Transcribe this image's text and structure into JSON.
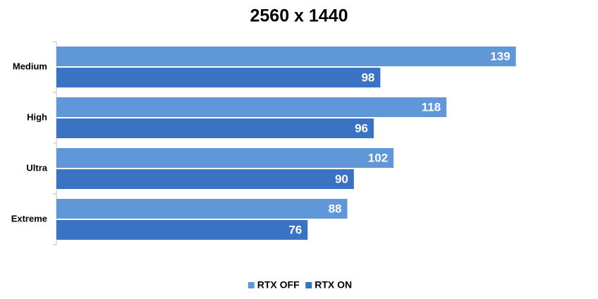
{
  "chart_data": {
    "type": "hbar",
    "title": "2560 x 1440",
    "categories": [
      "Medium",
      "High",
      "Ultra",
      "Extreme"
    ],
    "series": [
      {
        "name": "RTX OFF",
        "color": "#5f97d8",
        "values": [
          139,
          118,
          102,
          88
        ]
      },
      {
        "name": "RTX ON",
        "color": "#3a72c4",
        "values": [
          98,
          96,
          90,
          76
        ]
      }
    ],
    "xlim": [
      0,
      160
    ],
    "legend": "bottom"
  }
}
